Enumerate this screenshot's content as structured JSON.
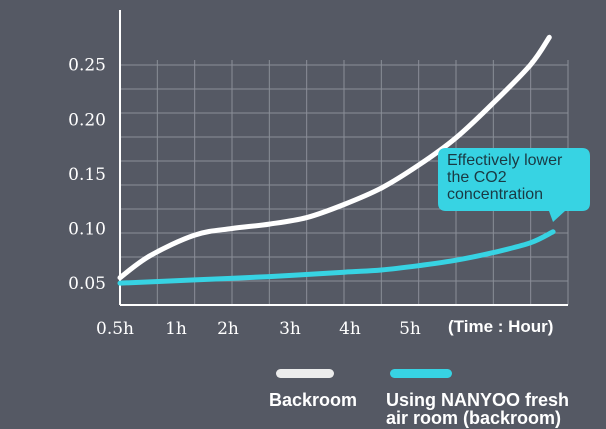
{
  "chart_data": {
    "type": "line",
    "x": [
      "0.5h",
      "1h",
      "2h",
      "3h",
      "4h",
      "5h"
    ],
    "x_unit_label": "(Time : Hour)",
    "y_ticks": [
      "0.05",
      "0.10",
      "0.15",
      "0.20",
      "0.25"
    ],
    "ylim": [
      0.03,
      0.3
    ],
    "grid": true,
    "series": [
      {
        "name": "Backroom",
        "color": "#ffffff",
        "points": [
          {
            "x": 0.5,
            "y": 0.055
          },
          {
            "x": 0.9,
            "y": 0.075
          },
          {
            "x": 1.5,
            "y": 0.094
          },
          {
            "x": 2.0,
            "y": 0.1
          },
          {
            "x": 2.5,
            "y": 0.104
          },
          {
            "x": 3.0,
            "y": 0.11
          },
          {
            "x": 3.5,
            "y": 0.122
          },
          {
            "x": 4.0,
            "y": 0.137
          },
          {
            "x": 4.5,
            "y": 0.158
          },
          {
            "x": 5.0,
            "y": 0.183
          },
          {
            "x": 5.5,
            "y": 0.215
          },
          {
            "x": 6.0,
            "y": 0.25
          },
          {
            "x": 6.25,
            "y": 0.275
          }
        ]
      },
      {
        "name": "Using NANYOO fresh air room  (backroom)",
        "color": "#37d3e3",
        "points": [
          {
            "x": 0.5,
            "y": 0.05
          },
          {
            "x": 1.5,
            "y": 0.053
          },
          {
            "x": 2.5,
            "y": 0.056
          },
          {
            "x": 3.5,
            "y": 0.06
          },
          {
            "x": 4.0,
            "y": 0.062
          },
          {
            "x": 4.5,
            "y": 0.066
          },
          {
            "x": 5.0,
            "y": 0.071
          },
          {
            "x": 5.5,
            "y": 0.078
          },
          {
            "x": 6.0,
            "y": 0.087
          },
          {
            "x": 6.3,
            "y": 0.097
          }
        ]
      }
    ],
    "annotation": {
      "lines": [
        "Effectively lower",
        "the CO2",
        "concentration"
      ],
      "color": "#37d3e3"
    }
  },
  "legend": {
    "items": [
      {
        "lines": [
          "Backroom"
        ],
        "color": "#ececec"
      },
      {
        "lines": [
          "Using NANYOO fresh",
          "air room  (backroom)"
        ],
        "color": "#37d3e3"
      }
    ]
  }
}
